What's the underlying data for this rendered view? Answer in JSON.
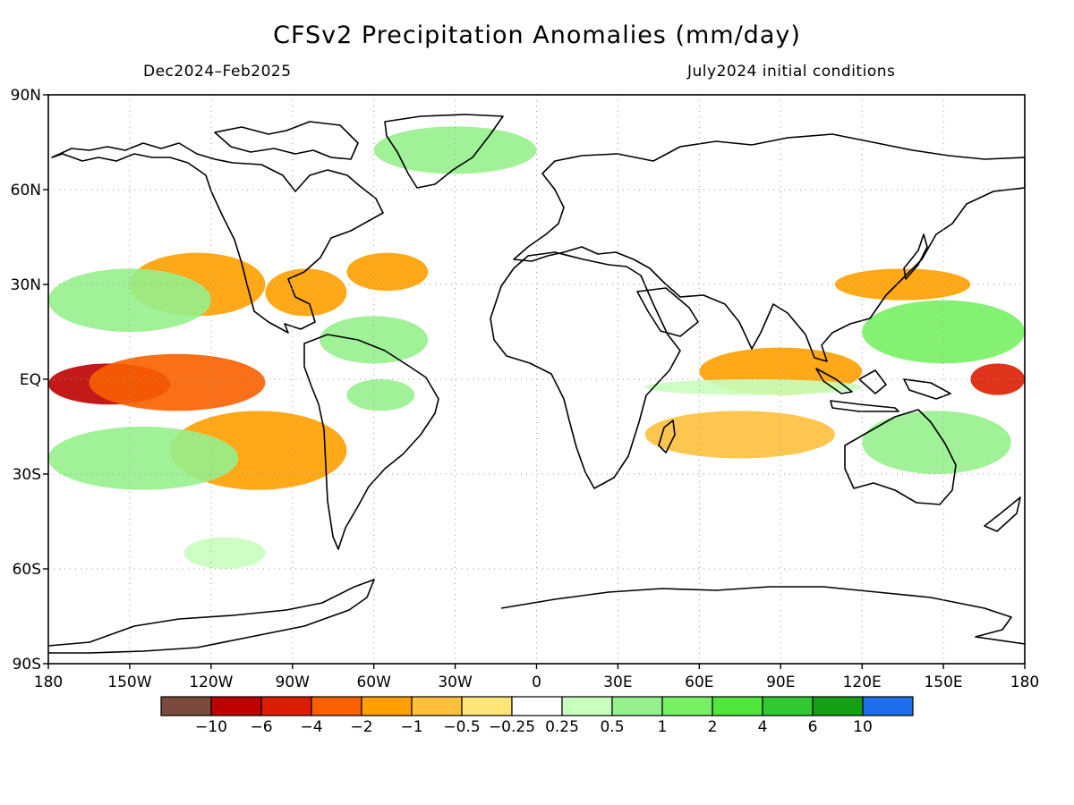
{
  "title": "CFSv2 Precipitation Anomalies (mm/day)",
  "subtitle_left": "Dec2024–Feb2025",
  "subtitle_right": "July2024 initial conditions",
  "axes": {
    "lat_labels": [
      "90N",
      "60N",
      "30N",
      "EQ",
      "30S",
      "60S",
      "90S"
    ],
    "lon_labels": [
      "180",
      "150W",
      "120W",
      "90W",
      "60W",
      "30W",
      "0",
      "30E",
      "60E",
      "90E",
      "120E",
      "150E",
      "180"
    ],
    "grid": "dotted"
  },
  "colorbar": {
    "labels": [
      "−10",
      "−6",
      "−4",
      "−2",
      "−1",
      "−0.5",
      "−0.25",
      "0.25",
      "0.5",
      "1",
      "2",
      "4",
      "6",
      "10"
    ],
    "colors": [
      "#7a4a3c",
      "#be0000",
      "#dc1e00",
      "#f86000",
      "#ffa000",
      "#ffc03c",
      "#ffe478",
      "#ffffff",
      "#c8ffbe",
      "#96f08c",
      "#78f064",
      "#50e63c",
      "#32c832",
      "#14a014",
      "#1e6eeb"
    ]
  },
  "chart_data": {
    "type": "heatmap",
    "variable": "Precipitation anomaly",
    "units": "mm/day",
    "lon_range": [
      -180,
      180
    ],
    "lat_range": [
      -90,
      90
    ],
    "levels": [
      -10,
      -6,
      -4,
      -2,
      -1,
      -0.5,
      -0.25,
      0.25,
      0.5,
      1,
      2,
      4,
      6,
      10
    ],
    "features": [
      {
        "lon_range": [
          -180,
          -135
        ],
        "lat_range": [
          -8,
          5
        ],
        "level": -6
      },
      {
        "lon_range": [
          -165,
          -100
        ],
        "lat_range": [
          -10,
          8
        ],
        "level": -2
      },
      {
        "lon_range": [
          -135,
          -70
        ],
        "lat_range": [
          -35,
          -10
        ],
        "level": -1
      },
      {
        "lon_range": [
          -150,
          -100
        ],
        "lat_range": [
          20,
          40
        ],
        "level": -1
      },
      {
        "lon_range": [
          -100,
          -70
        ],
        "lat_range": [
          20,
          35
        ],
        "level": -1
      },
      {
        "lon_range": [
          -70,
          -40
        ],
        "lat_range": [
          28,
          40
        ],
        "level": -1
      },
      {
        "lon_range": [
          -180,
          -120
        ],
        "lat_range": [
          15,
          35
        ],
        "level": 1
      },
      {
        "lon_range": [
          -180,
          -110
        ],
        "lat_range": [
          -35,
          -15
        ],
        "level": 1
      },
      {
        "lon_range": [
          -80,
          -40
        ],
        "lat_range": [
          5,
          20
        ],
        "level": 1
      },
      {
        "lon_range": [
          -70,
          -45
        ],
        "lat_range": [
          -10,
          0
        ],
        "level": 1
      },
      {
        "lon_range": [
          -130,
          -100
        ],
        "lat_range": [
          -60,
          -50
        ],
        "level": 0.5
      },
      {
        "lon_range": [
          -60,
          0
        ],
        "lat_range": [
          65,
          80
        ],
        "level": 1
      },
      {
        "lon_range": [
          120,
          180
        ],
        "lat_range": [
          5,
          25
        ],
        "level": 2
      },
      {
        "lon_range": [
          120,
          175
        ],
        "lat_range": [
          -30,
          -10
        ],
        "level": 1
      },
      {
        "lon_range": [
          160,
          180
        ],
        "lat_range": [
          -5,
          5
        ],
        "level": -4
      },
      {
        "lon_range": [
          110,
          160
        ],
        "lat_range": [
          25,
          35
        ],
        "level": -1
      },
      {
        "lon_range": [
          60,
          120
        ],
        "lat_range": [
          -5,
          10
        ],
        "level": -1
      },
      {
        "lon_range": [
          40,
          110
        ],
        "lat_range": [
          -25,
          -10
        ],
        "level": -0.5
      },
      {
        "lon_range": [
          40,
          120
        ],
        "lat_range": [
          -5,
          0
        ],
        "level": 0.5
      }
    ]
  }
}
